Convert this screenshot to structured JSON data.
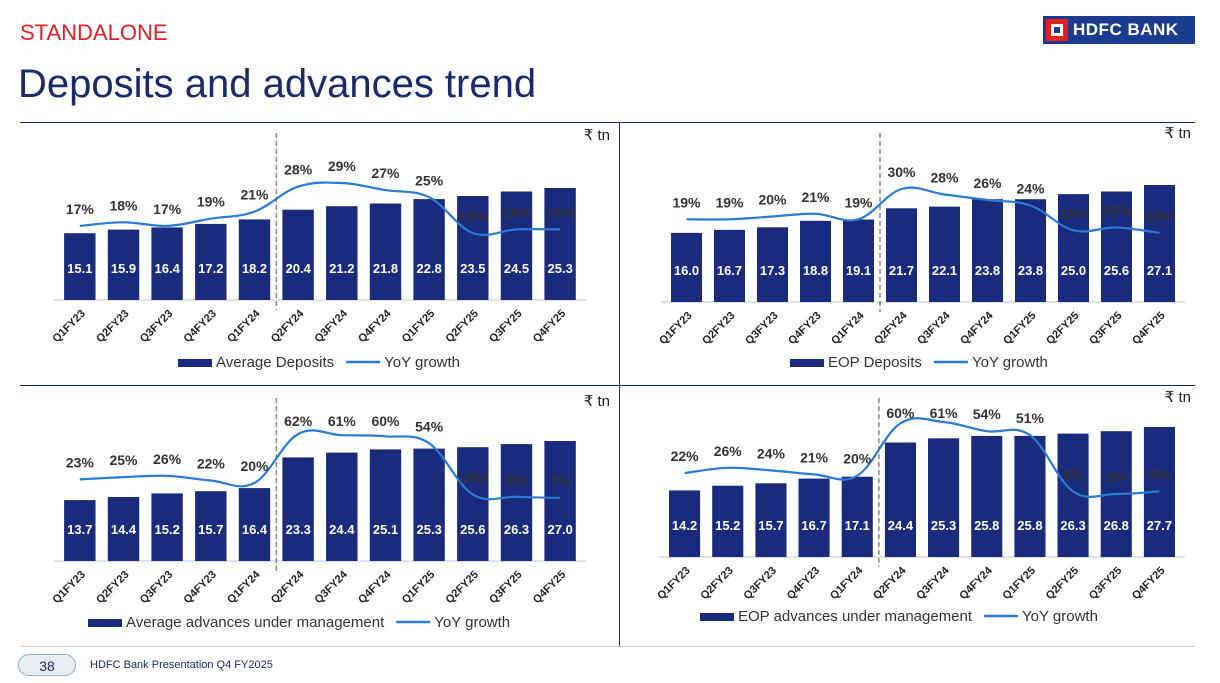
{
  "header": {
    "section_label": "STANDALONE",
    "title": "Deposits and advances trend",
    "logo_text": "HDFC BANK"
  },
  "footer": {
    "page_number": "38",
    "text": "HDFC Bank Presentation Q4 FY2025"
  },
  "colors": {
    "bar": "#1a2a7c",
    "line": "#2b7bd6",
    "title": "#1a2a6c",
    "accent": "#e31e24"
  },
  "chart_data": [
    {
      "type": "bar",
      "unit": "₹ tn",
      "categories": [
        "Q1FY23",
        "Q2FY23",
        "Q3FY23",
        "Q4FY23",
        "Q1FY24",
        "Q2FY24",
        "Q3FY24",
        "Q4FY24",
        "Q1FY25",
        "Q2FY25",
        "Q3FY25",
        "Q4FY25"
      ],
      "series": [
        {
          "name": "Average Deposits",
          "type": "bar",
          "values": [
            15.1,
            15.9,
            16.4,
            17.2,
            18.2,
            20.4,
            21.2,
            21.8,
            22.8,
            23.5,
            24.5,
            25.3
          ]
        },
        {
          "name": "YoY growth",
          "type": "line",
          "values": [
            17,
            18,
            17,
            19,
            21,
            28,
            29,
            27,
            25,
            15,
            16,
            16
          ],
          "labels": [
            "17%",
            "18%",
            "17%",
            "19%",
            "21%",
            "28%",
            "29%",
            "27%",
            "25%",
            "15%",
            "16%",
            "16%"
          ]
        }
      ],
      "divider_after_category": "Q1FY24",
      "legend": "bottom"
    },
    {
      "type": "bar",
      "unit": "₹ tn",
      "categories": [
        "Q1FY23",
        "Q2FY23",
        "Q3FY23",
        "Q4FY23",
        "Q1FY24",
        "Q2FY24",
        "Q3FY24",
        "Q4FY24",
        "Q1FY25",
        "Q2FY25",
        "Q3FY25",
        "Q4FY25"
      ],
      "series": [
        {
          "name": "EOP Deposits",
          "type": "bar",
          "values": [
            16.0,
            16.7,
            17.3,
            18.8,
            19.1,
            21.7,
            22.1,
            23.8,
            23.8,
            25.0,
            25.6,
            27.1
          ]
        },
        {
          "name": "YoY growth",
          "type": "line",
          "values": [
            19,
            19,
            20,
            21,
            19,
            30,
            28,
            26,
            24,
            15,
            16,
            14
          ],
          "labels": [
            "19%",
            "19%",
            "20%",
            "21%",
            "19%",
            "30%",
            "28%",
            "26%",
            "24%",
            "15%",
            "16%",
            "14%"
          ]
        }
      ],
      "divider_after_category": "Q1FY24",
      "legend": "bottom"
    },
    {
      "type": "bar",
      "unit": "₹ tn",
      "categories": [
        "Q1FY23",
        "Q2FY23",
        "Q3FY23",
        "Q4FY23",
        "Q1FY24",
        "Q2FY24",
        "Q3FY24",
        "Q4FY24",
        "Q1FY25",
        "Q2FY25",
        "Q3FY25",
        "Q4FY25"
      ],
      "series": [
        {
          "name": "Average advances under management",
          "type": "bar",
          "values": [
            13.7,
            14.4,
            15.2,
            15.7,
            16.4,
            23.3,
            24.4,
            25.1,
            25.3,
            25.6,
            26.3,
            27.0
          ]
        },
        {
          "name": "YoY growth",
          "type": "line",
          "values": [
            23,
            25,
            26,
            22,
            20,
            62,
            61,
            60,
            54,
            10,
            8,
            7
          ],
          "labels": [
            "23%",
            "25%",
            "26%",
            "22%",
            "20%",
            "62%",
            "61%",
            "60%",
            "54%",
            "10%",
            "8%",
            "7%"
          ]
        }
      ],
      "divider_after_category": "Q1FY24",
      "legend": "bottom"
    },
    {
      "type": "bar",
      "unit": "₹ tn",
      "categories": [
        "Q1FY23",
        "Q2FY23",
        "Q3FY23",
        "Q4FY23",
        "Q1FY24",
        "Q2FY24",
        "Q3FY24",
        "Q4FY24",
        "Q1FY25",
        "Q2FY25",
        "Q3FY25",
        "Q4FY25"
      ],
      "series": [
        {
          "name": "EOP advances under management",
          "type": "bar",
          "values": [
            14.2,
            15.2,
            15.7,
            16.7,
            17.1,
            24.4,
            25.3,
            25.8,
            25.8,
            26.3,
            26.8,
            27.7
          ]
        },
        {
          "name": "YoY growth",
          "type": "line",
          "values": [
            22,
            26,
            24,
            21,
            20,
            60,
            61,
            54,
            51,
            8,
            6,
            8
          ],
          "labels": [
            "22%",
            "26%",
            "24%",
            "21%",
            "20%",
            "60%",
            "61%",
            "54%",
            "51%",
            "8%",
            "6%",
            "8%"
          ]
        }
      ],
      "divider_after_category": "Q1FY24",
      "legend": "bottom"
    }
  ]
}
